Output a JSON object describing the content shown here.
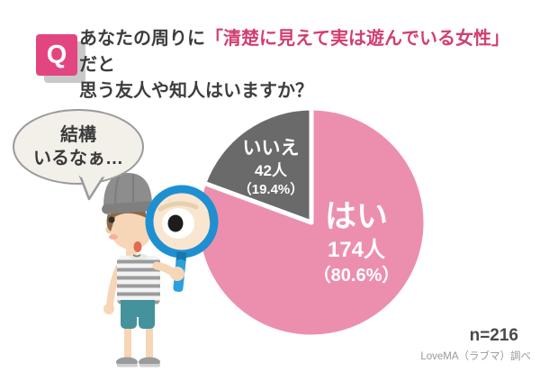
{
  "question": {
    "badge": "Q",
    "line1_before": "あなたの周りに",
    "line1_highlight": "「清楚に見えて実は遊んでいる女性」",
    "line1_after": "だと",
    "line2": "思う友人や知人はいますか？",
    "highlight_color": "#d23e70"
  },
  "speech_bubble": {
    "line1": "結構",
    "line2": "いるなぁ…"
  },
  "chart_data": {
    "type": "pie",
    "title": "あなたの周りに「清楚に見えて実は遊んでいる女性」だと思う友人や知人はいますか？",
    "total": 216,
    "unit": "人",
    "start_angle_deg": 0,
    "direction": "clockwise",
    "divider_color": "#ffffff",
    "label_text_color": "#ffffff",
    "slices": [
      {
        "key": "yes",
        "label": "はい",
        "value": 174,
        "percent": 80.6,
        "count_label": "174人",
        "percent_label": "（80.6%）",
        "color": "#ec8fae"
      },
      {
        "key": "no",
        "label": "いいえ",
        "value": 42,
        "percent": 19.4,
        "count_label": "42人",
        "percent_label": "（19.4%）",
        "color": "#6a6a6a"
      }
    ]
  },
  "footer": {
    "sample_size": "n=216",
    "source": "LoveMA（ラブマ）調べ"
  },
  "colors": {
    "badge_pink": "#e34580",
    "badge_shadow": "#c9c9c9",
    "question_text": "#3d3d3d",
    "pie_yes": "#ec8fae",
    "pie_no": "#6a6a6a",
    "magnifier_blue": "#1e90d2",
    "footer_n": "#4a4a4a",
    "footer_source": "#999999"
  }
}
